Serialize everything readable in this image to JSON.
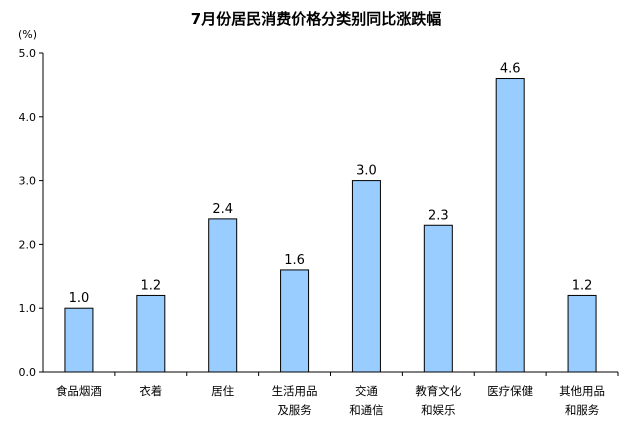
{
  "chart_data": {
    "type": "bar",
    "title": "7月份居民消费价格分类别同比涨跌幅",
    "unit_label": "(%)",
    "categories": [
      [
        "食品烟酒"
      ],
      [
        "衣着"
      ],
      [
        "居住"
      ],
      [
        "生活用品",
        "及服务"
      ],
      [
        "交通",
        "和通信"
      ],
      [
        "教育文化",
        "和娱乐"
      ],
      [
        "医疗保健"
      ],
      [
        "其他用品",
        "和服务"
      ]
    ],
    "values": [
      1.0,
      1.2,
      2.4,
      1.6,
      3.0,
      2.3,
      4.6,
      1.2
    ],
    "value_labels": [
      "1.0",
      "1.2",
      "2.4",
      "1.6",
      "3.0",
      "2.3",
      "4.6",
      "1.2"
    ],
    "ylim": [
      0,
      5.0
    ],
    "yticks": [
      "0.0",
      "1.0",
      "2.0",
      "3.0",
      "4.0",
      "5.0"
    ],
    "bar_color": "#99ccff",
    "bar_edge_color": "#000000",
    "grid": false,
    "legend": "none"
  }
}
